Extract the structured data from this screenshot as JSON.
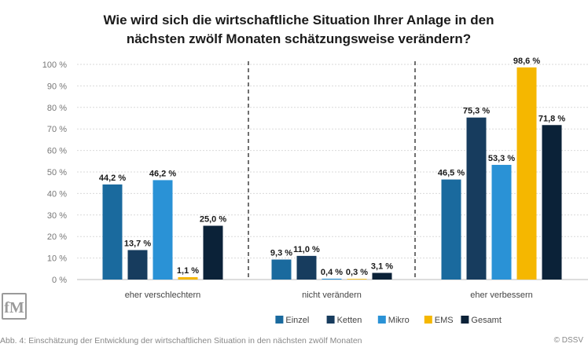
{
  "title_line1": "Wie wird sich die wirtschaftliche Situation Ihrer Anlage in den",
  "title_line2": "nächsten zwölf Monaten schätzungsweise verändern?",
  "caption": "Abb. 4: Einschätzung der Entwicklung der wirtschaftlichen Situation in den nächsten zwölf Monaten",
  "copyright": "© DSSV",
  "logo": "fM",
  "chart_data": {
    "type": "bar",
    "categories": [
      "eher verschlechtern",
      "nicht verändern",
      "eher verbessern"
    ],
    "series": [
      {
        "name": "Einzel",
        "color": "#1a6a9e",
        "values": [
          44.2,
          9.3,
          46.5
        ],
        "labels": [
          "44,2 %",
          "9,3 %",
          "46,5 %"
        ]
      },
      {
        "name": "Ketten",
        "color": "#173c5e",
        "values": [
          13.7,
          11.0,
          75.3
        ],
        "labels": [
          "13,7 %",
          "11,0 %",
          "75,3 %"
        ]
      },
      {
        "name": "Mikro",
        "color": "#2a92d6",
        "values": [
          46.2,
          0.4,
          53.3
        ],
        "labels": [
          "46,2 %",
          "0,4 %",
          "53,3 %"
        ]
      },
      {
        "name": "EMS",
        "color": "#f5b700",
        "values": [
          1.1,
          0.3,
          98.6
        ],
        "labels": [
          "1,1 %",
          "0,3 %",
          "98,6 %"
        ]
      },
      {
        "name": "Gesamt",
        "color": "#0b2238",
        "values": [
          25.0,
          3.1,
          71.8
        ],
        "labels": [
          "25,0 %",
          "3,1 %",
          "71,8 %"
        ]
      }
    ],
    "yticks": [
      "0 %",
      "10 %",
      "20 %",
      "30 %",
      "40 %",
      "50 %",
      "60 %",
      "70 %",
      "80 %",
      "90 %",
      "100 %"
    ],
    "ylim": [
      0,
      100
    ],
    "grid": true,
    "legend_position": "bottom"
  }
}
